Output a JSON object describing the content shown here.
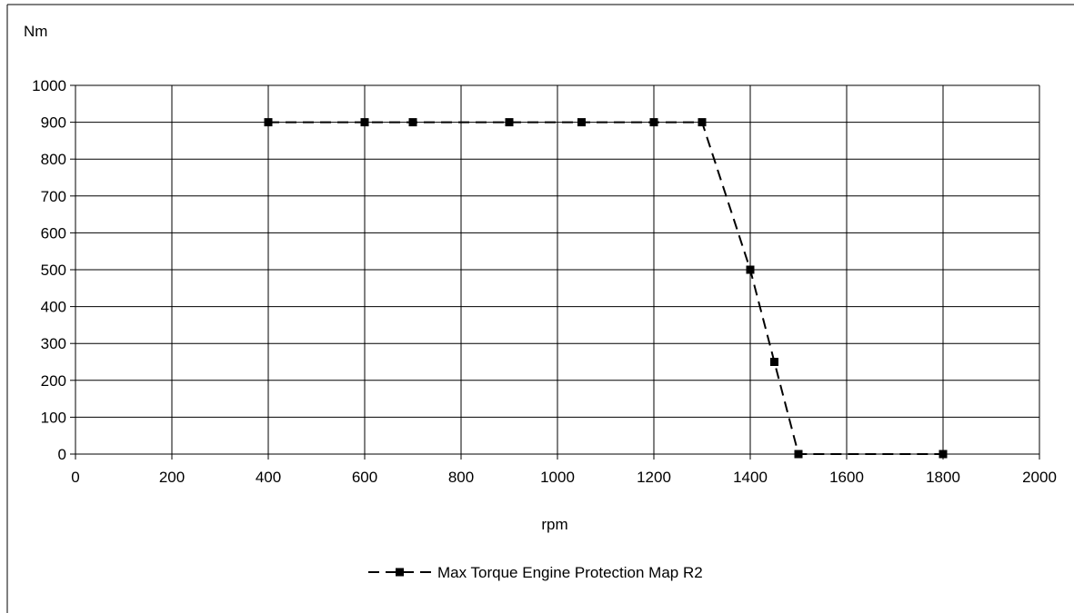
{
  "chart_data": {
    "type": "line",
    "title": "",
    "xlabel": "rpm",
    "ylabel": "Nm",
    "xlim": [
      0,
      2000
    ],
    "ylim": [
      0,
      1000
    ],
    "xticks": [
      0,
      200,
      400,
      600,
      800,
      1000,
      1200,
      1400,
      1600,
      1800,
      2000
    ],
    "yticks": [
      0,
      100,
      200,
      300,
      400,
      500,
      600,
      700,
      800,
      900,
      1000
    ],
    "grid": true,
    "legend_position": "bottom",
    "series": [
      {
        "name": "Max Torque Engine Protection Map R2",
        "color": "#000000",
        "line_style": "dashed",
        "marker": "square",
        "x": [
          400,
          600,
          700,
          900,
          1050,
          1200,
          1300,
          1400,
          1450,
          1500,
          1800
        ],
        "y": [
          900,
          900,
          900,
          900,
          900,
          900,
          900,
          500,
          250,
          0,
          0
        ]
      }
    ]
  }
}
